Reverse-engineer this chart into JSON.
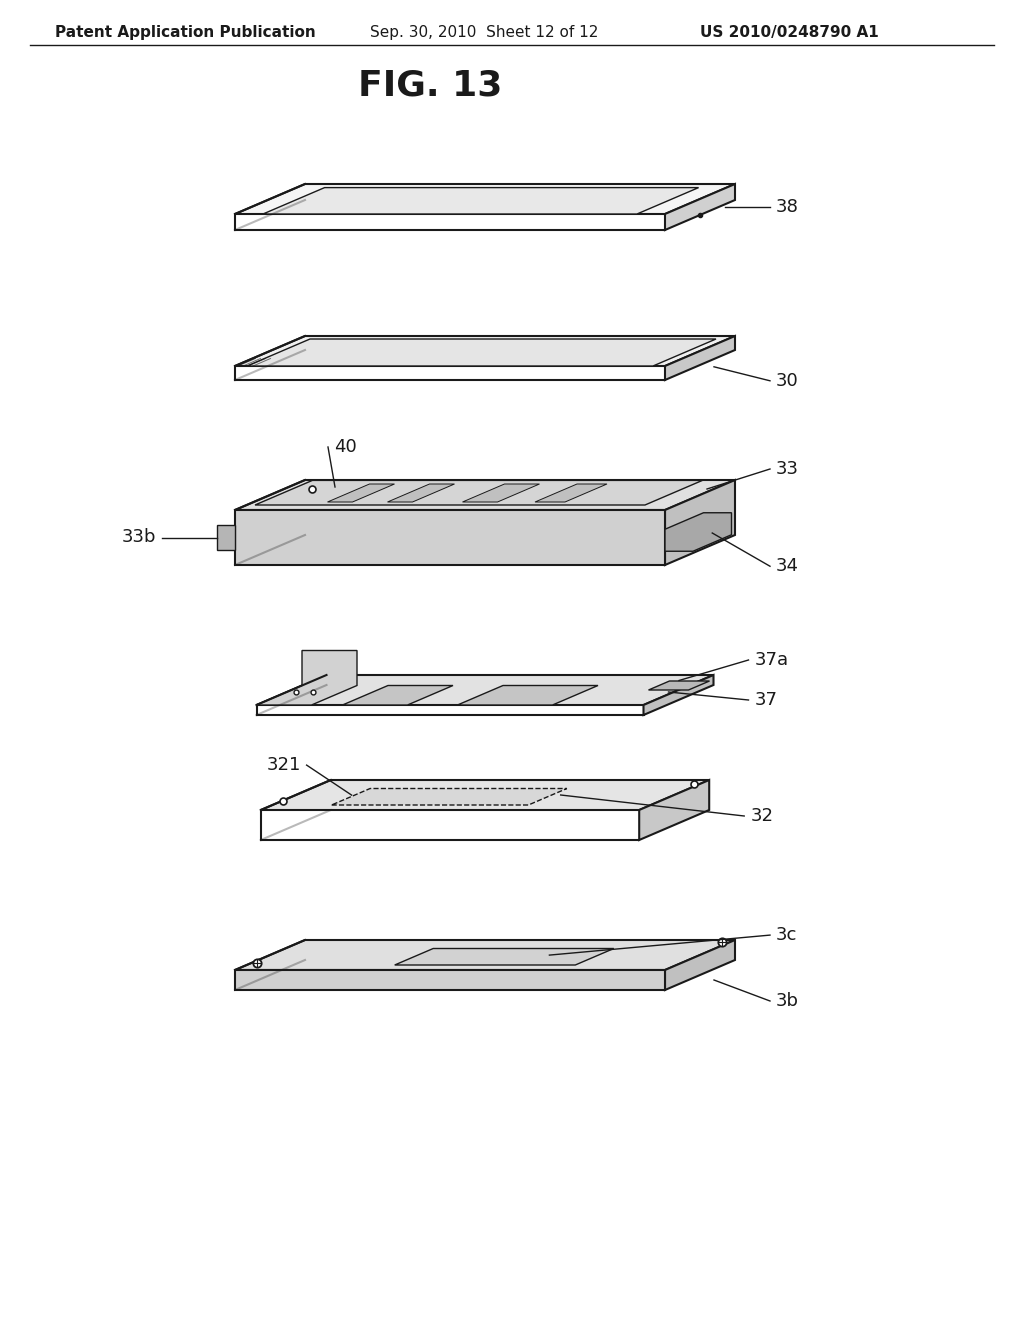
{
  "title": "FIG. 13",
  "header_left": "Patent Application Publication",
  "header_center": "Sep. 30, 2010  Sheet 12 of 12",
  "header_right": "US 2010/0248790 A1",
  "bg_color": "#ffffff",
  "line_color": "#1a1a1a",
  "fig_title_fontsize": 26,
  "header_fontsize": 11,
  "label_fontsize": 13
}
